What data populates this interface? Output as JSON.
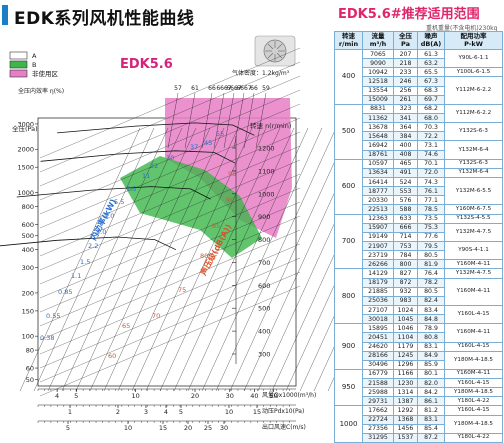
{
  "header": {
    "title": "EDK系列风机性能曲线",
    "table_title": "EDK5.6#推荐适用范围",
    "table_subtitle": "重机重量(不含电机)230kg"
  },
  "chart_data": {
    "type": "line",
    "title": "EDK5.6",
    "legend": [
      {
        "label": "A",
        "color": "#ffffff"
      },
      {
        "label": "B",
        "color": "#3cb54a"
      },
      {
        "label": "非使用区",
        "color": "#e77fc6"
      }
    ],
    "annotation": "气体密度：1.2kg/m³",
    "efficiency_label": "全压内效率 η(%)",
    "efficiency_ticks": [
      "57",
      "61",
      "66",
      "6667",
      "6667",
      "6667",
      "66",
      "59"
    ],
    "y_left_label": "全压(Pa)",
    "y_left_ticks": [
      3000,
      2000,
      1500,
      1000,
      800,
      600,
      500,
      400,
      300,
      200,
      150,
      100,
      80,
      60,
      50
    ],
    "y_right_label": "转速 n(r/min)",
    "y_right_ticks": [
      1200,
      1100,
      1000,
      900,
      800,
      700,
      600,
      500,
      400,
      300
    ],
    "x_flow_label": "风量Qx1000(m³/h)",
    "x_flow_ticks": [
      4,
      5,
      10,
      20,
      30,
      40,
      50
    ],
    "x_dyn_label": "动压Pdx10(Pa)",
    "x_dyn_ticks": [
      1,
      2,
      3,
      4,
      5,
      10,
      15
    ],
    "x_vel_label": "出口风速C(m/s)",
    "x_vel_ticks": [
      5,
      10,
      15,
      20,
      25,
      30
    ],
    "power_curve_label": "内功率(kW)",
    "power_values": [
      "11",
      "7.5",
      "5.5",
      "4.0",
      "3.0",
      "2.2",
      "1.5",
      "1.1",
      "0.85",
      "0.55",
      "0.38"
    ],
    "noise_curve_label": "声压级(dB(A))",
    "noise_values": [
      "95",
      "90",
      "85",
      "80",
      "75",
      "70",
      "65",
      "60"
    ],
    "top_values": [
      "22",
      "30",
      "37",
      "45",
      "55"
    ],
    "series": [
      {
        "speed": 1000,
        "points": [
          [
            4.0,
            2600
          ],
          [
            10,
            2900
          ],
          [
            20,
            3050
          ],
          [
            31,
            2950
          ],
          [
            40,
            2500
          ]
        ]
      },
      {
        "speed": 800,
        "points": [
          [
            3.3,
            1650
          ],
          [
            8,
            1850
          ],
          [
            16,
            1950
          ],
          [
            25,
            1900
          ],
          [
            32,
            1600
          ]
        ]
      },
      {
        "speed": 600,
        "points": [
          [
            2.5,
            930
          ],
          [
            6,
            1040
          ],
          [
            12,
            1100
          ],
          [
            19,
            1060
          ],
          [
            24,
            900
          ]
        ]
      },
      {
        "speed": 400,
        "points": [
          [
            1.7,
            415
          ],
          [
            4,
            465
          ],
          [
            8,
            490
          ],
          [
            12.5,
            470
          ],
          [
            16,
            400
          ]
        ]
      }
    ]
  },
  "table": {
    "headers": [
      "转速\nr/min",
      "流量\nm³/h",
      "全压\nPa",
      "噪声\ndB(A)",
      "配用功率\nP-kW"
    ],
    "groups": [
      {
        "speed": "400",
        "rows": [
          [
            "7065",
            "207",
            "61.3"
          ],
          [
            "9090",
            "218",
            "63.2"
          ],
          [
            "10942",
            "233",
            "65.5"
          ],
          [
            "12518",
            "246",
            "67.3"
          ],
          [
            "13554",
            "256",
            "68.3"
          ],
          [
            "15009",
            "261",
            "69.7"
          ]
        ],
        "motors": [
          {
            "rows": 2,
            "text": "Y90L-6-1.1"
          },
          {
            "rows": 1,
            "text": "Y100L-6-1.5"
          },
          {
            "rows": 3,
            "text": "Y112M-6-2.2"
          }
        ]
      },
      {
        "speed": "500",
        "rows": [
          [
            "8831",
            "323",
            "68.2"
          ],
          [
            "11362",
            "341",
            "68.0"
          ],
          [
            "13678",
            "364",
            "70.3"
          ],
          [
            "15648",
            "384",
            "72.2"
          ],
          [
            "16942",
            "400",
            "73.1"
          ],
          [
            "18761",
            "408",
            "74.6"
          ]
        ],
        "motors": [
          {
            "rows": 2,
            "text": "Y112M-6-2.2"
          },
          {
            "rows": 2,
            "text": "Y132S-6-3"
          },
          {
            "rows": 2,
            "text": "Y132M-6-4"
          }
        ]
      },
      {
        "speed": "600",
        "rows": [
          [
            "10597",
            "465",
            "70.1"
          ],
          [
            "13634",
            "491",
            "72.0"
          ],
          [
            "16414",
            "524",
            "74.3"
          ],
          [
            "18777",
            "553",
            "76.1"
          ],
          [
            "20330",
            "576",
            "77.1"
          ],
          [
            "22513",
            "588",
            "78.5"
          ]
        ],
        "motors": [
          {
            "rows": 1,
            "text": "Y132S-6-3"
          },
          {
            "rows": 1,
            "text": "Y132M-6-4"
          },
          {
            "rows": 3,
            "text": "Y132M-6-5.5"
          },
          {
            "rows": 1,
            "text": "Y160M-6-7.5"
          }
        ]
      },
      {
        "speed": "700",
        "rows": [
          [
            "12363",
            "633",
            "73.5"
          ],
          [
            "15907",
            "666",
            "75.3"
          ],
          [
            "19149",
            "714",
            "77.6"
          ],
          [
            "21907",
            "753",
            "79.5"
          ],
          [
            "23719",
            "784",
            "80.5"
          ],
          [
            "26266",
            "800",
            "81.9"
          ]
        ],
        "motors": [
          {
            "rows": 1,
            "text": "Y132S-4-5.5"
          },
          {
            "rows": 2,
            "text": "Y132M-4-7.5"
          },
          {
            "rows": 2,
            "text": "Y90S-4-1.1"
          },
          {
            "rows": 1,
            "text": "Y160M-4-11"
          }
        ]
      },
      {
        "speed": "800",
        "rows": [
          [
            "14129",
            "827",
            "76.4"
          ],
          [
            "18179",
            "872",
            "78.2"
          ],
          [
            "21885",
            "932",
            "80.5"
          ],
          [
            "25036",
            "983",
            "82.4"
          ],
          [
            "27107",
            "1024",
            "83.4"
          ],
          [
            "30018",
            "1045",
            "84.8"
          ]
        ],
        "motors": [
          {
            "rows": 1,
            "text": "Y132M-4-7.5"
          },
          {
            "rows": 3,
            "text": "Y160M-4-11"
          },
          {
            "rows": 2,
            "text": "Y160L-4-15"
          }
        ]
      },
      {
        "speed": "900",
        "rows": [
          [
            "15895",
            "1046",
            "78.9"
          ],
          [
            "20451",
            "1104",
            "80.8"
          ],
          [
            "24620",
            "1179",
            "83.1"
          ],
          [
            "28166",
            "1245",
            "84.9"
          ],
          [
            "30496",
            "1296",
            "85.9"
          ]
        ],
        "motors": [
          {
            "rows": 2,
            "text": "Y160M-4-11"
          },
          {
            "rows": 1,
            "text": "Y160L-4-15"
          },
          {
            "rows": 2,
            "text": "Y180M-4-18.5"
          }
        ]
      },
      {
        "speed": "950",
        "rows": [
          [
            "16779",
            "1166",
            "80.1"
          ],
          [
            "21588",
            "1230",
            "82.0"
          ],
          [
            "25988",
            "1314",
            "84.2"
          ],
          [
            "29731",
            "1387",
            "86.1"
          ]
        ],
        "motors": [
          {
            "rows": 1,
            "text": "Y160M-4-11"
          },
          {
            "rows": 1,
            "text": "Y160L-4-15"
          },
          {
            "rows": 1,
            "text": "Y180M-4-18.5"
          },
          {
            "rows": 1,
            "text": "Y180L-4-22"
          }
        ]
      },
      {
        "speed": "1000",
        "rows": [
          [
            "17662",
            "1292",
            "81.2"
          ],
          [
            "22724",
            "1368",
            "83.1"
          ],
          [
            "27356",
            "1456",
            "85.4"
          ],
          [
            "31295",
            "1537",
            "87.2"
          ]
        ],
        "motors": [
          {
            "rows": 1,
            "text": "Y160L-4-15"
          },
          {
            "rows": 2,
            "text": "Y180M-4-18.5"
          },
          {
            "rows": 1,
            "text": "Y180L-4-22"
          }
        ]
      }
    ]
  }
}
